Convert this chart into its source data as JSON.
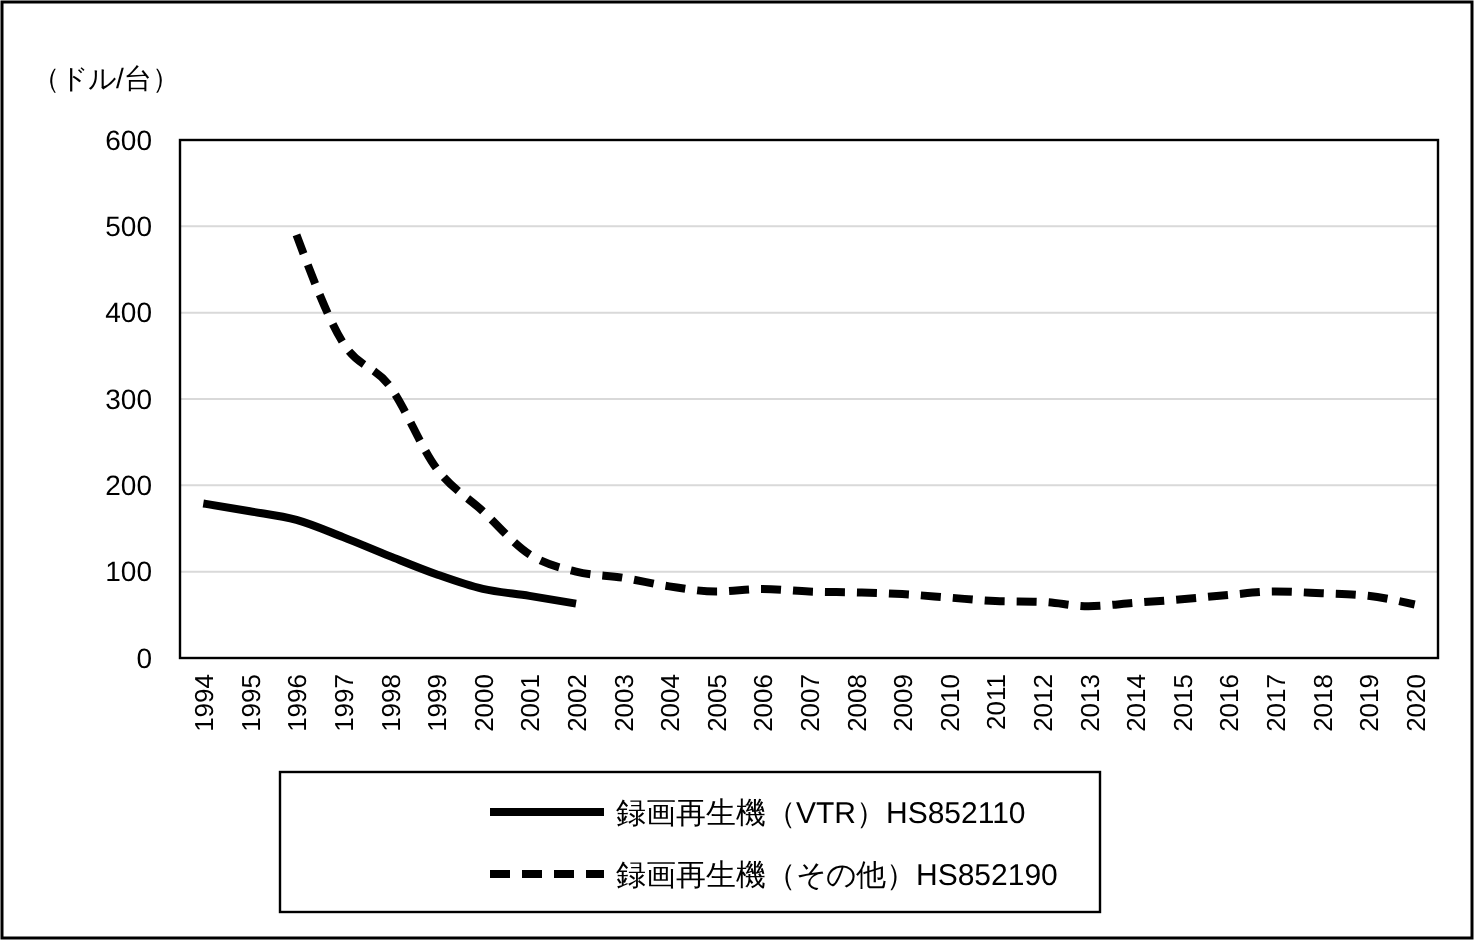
{
  "chart_data": {
    "type": "line",
    "ylabel": "（ドル/台）",
    "categories": [
      "1994",
      "1995",
      "1996",
      "1997",
      "1998",
      "1999",
      "2000",
      "2001",
      "2002",
      "2003",
      "2004",
      "2005",
      "2006",
      "2007",
      "2008",
      "2009",
      "2010",
      "2011",
      "2012",
      "2013",
      "2014",
      "2015",
      "2016",
      "2017",
      "2018",
      "2019",
      "2020"
    ],
    "series": [
      {
        "name": "録画再生機（VTR）HS852110",
        "color": "#000000",
        "line_style": "solid",
        "values": [
          179,
          170,
          160,
          140,
          118,
          97,
          80,
          72,
          63,
          null,
          null,
          null,
          null,
          null,
          null,
          null,
          null,
          null,
          null,
          null,
          null,
          null,
          null,
          null,
          null,
          null,
          null
        ]
      },
      {
        "name": "録画再生機（その他）HS852190",
        "color": "#000000",
        "line_style": "dashed",
        "values": [
          null,
          null,
          490,
          365,
          315,
          220,
          170,
          120,
          100,
          93,
          83,
          77,
          80,
          77,
          76,
          74,
          70,
          66,
          65,
          60,
          64,
          68,
          73,
          77,
          75,
          72,
          62
        ]
      }
    ],
    "ylim": [
      0,
      600
    ],
    "yticks": [
      0,
      100,
      200,
      300,
      400,
      500,
      600
    ],
    "grid": "y",
    "legend": "bottom"
  }
}
